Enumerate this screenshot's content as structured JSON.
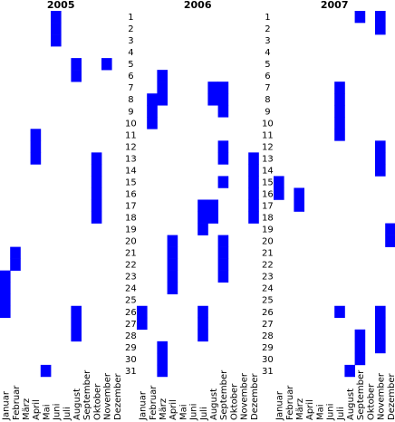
{
  "chart_data": [
    {
      "type": "calendar",
      "title": "2005",
      "color": "#0000ff",
      "categories": [
        "Januar",
        "Februar",
        "März",
        "April",
        "Mai",
        "Juni",
        "Juli",
        "August",
        "September",
        "Oktober",
        "November",
        "Dezember"
      ],
      "values": [
        [
          23,
          24,
          25,
          26
        ],
        [
          21,
          22
        ],
        [],
        [
          11,
          12,
          13
        ],
        [
          31
        ],
        [
          1,
          2,
          3
        ],
        [],
        [
          5,
          6,
          26,
          27,
          28
        ],
        [],
        [
          13,
          14,
          15,
          16,
          17,
          18
        ],
        [
          5
        ],
        []
      ],
      "ylim": [
        1,
        31
      ],
      "yticks": [
        1,
        2,
        3,
        4,
        5,
        6,
        7,
        8,
        9,
        10,
        11,
        12,
        13,
        14,
        15,
        16,
        17,
        18,
        19,
        20,
        21,
        22,
        23,
        24,
        25,
        26,
        27,
        28,
        29,
        30,
        31
      ]
    },
    {
      "type": "calendar",
      "title": "2006",
      "color": "#0000ff",
      "categories": [
        "Januar",
        "Februar",
        "März",
        "April",
        "Mai",
        "Juni",
        "Juli",
        "August",
        "September",
        "Oktober",
        "November",
        "Dezember"
      ],
      "values": [
        [
          26,
          27
        ],
        [
          8,
          9,
          10
        ],
        [
          6,
          7,
          8,
          29,
          30,
          31
        ],
        [
          20,
          21,
          22,
          23,
          24
        ],
        [],
        [],
        [
          17,
          18,
          19,
          26,
          27,
          28
        ],
        [
          7,
          8,
          17,
          18
        ],
        [
          7,
          8,
          9,
          12,
          13,
          15,
          20,
          21,
          22,
          23
        ],
        [],
        [],
        [
          13,
          14,
          15,
          16,
          17,
          18
        ]
      ],
      "ylim": [
        1,
        31
      ],
      "yticks": [
        1,
        2,
        3,
        4,
        5,
        6,
        7,
        8,
        9,
        10,
        11,
        12,
        13,
        14,
        15,
        16,
        17,
        18,
        19,
        20,
        21,
        22,
        23,
        24,
        25,
        26,
        27,
        28,
        29,
        30,
        31
      ]
    },
    {
      "type": "calendar",
      "title": "2007",
      "color": "#0000ff",
      "categories": [
        "Januar",
        "Februar",
        "März",
        "April",
        "Mai",
        "Juni",
        "Juli",
        "August",
        "September",
        "Oktober",
        "November",
        "Dezember"
      ],
      "values": [
        [
          15,
          16
        ],
        [],
        [
          16,
          17
        ],
        [],
        [],
        [],
        [
          7,
          8,
          9,
          10,
          11,
          26
        ],
        [
          31
        ],
        [
          1,
          28,
          29,
          30
        ],
        [],
        [
          1,
          2,
          12,
          13,
          14,
          26,
          27,
          28,
          29
        ],
        [
          19,
          20
        ]
      ],
      "ylim": [
        1,
        31
      ]
    }
  ]
}
